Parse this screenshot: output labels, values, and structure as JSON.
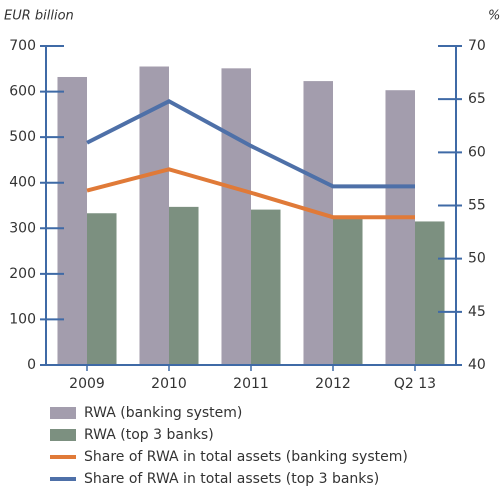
{
  "chart_data": {
    "type": "bar",
    "y_label": "EUR billion",
    "y2_label": "%",
    "categories": [
      "2009",
      "2010",
      "2011",
      "2012",
      "Q2 13"
    ],
    "ylim": [
      0,
      700
    ],
    "yticks": [
      0,
      100,
      200,
      300,
      400,
      500,
      600,
      700
    ],
    "y2lim": [
      40,
      70
    ],
    "y2ticks": [
      40,
      45,
      50,
      55,
      60,
      65,
      70
    ],
    "axis_color": "#3f6aa6",
    "series": [
      {
        "name": "RWA (banking system)",
        "type": "bar",
        "color": "#a39dad",
        "values": [
          632,
          655,
          651,
          623,
          603
        ]
      },
      {
        "name": "RWA (top 3 banks)",
        "type": "bar",
        "color": "#7c9080",
        "values": [
          333,
          347,
          341,
          322,
          315
        ]
      },
      {
        "name": "Share of RWA in total assets (banking system)",
        "type": "line",
        "axis": "y2",
        "color": "#e07a38",
        "values": [
          56.4,
          58.4,
          56.2,
          53.9,
          53.9
        ]
      },
      {
        "name": "Share of RWA in total assets (top 3 banks)",
        "type": "line",
        "axis": "y2",
        "color": "#4e70a8",
        "values": [
          60.9,
          64.8,
          60.6,
          56.8,
          56.8
        ]
      }
    ]
  }
}
